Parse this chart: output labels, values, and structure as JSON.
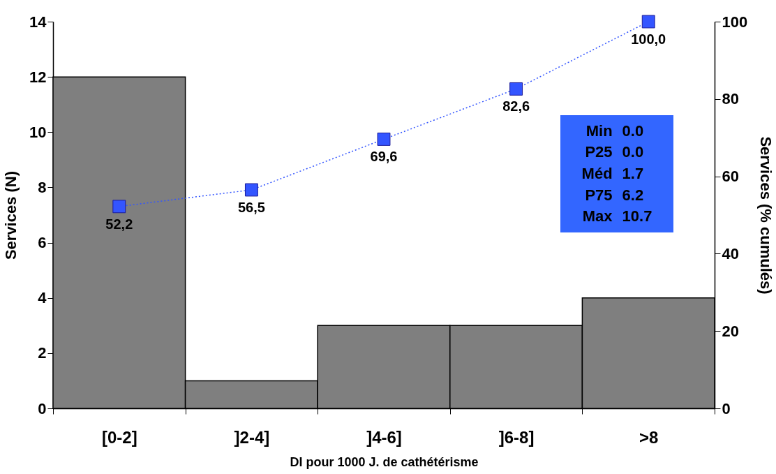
{
  "chart_data": {
    "type": "bar",
    "xlabel": "DI pour 1000 J. de cathétérisme",
    "ylabel": "Services (N)",
    "y2label": "Services (% cumulés)",
    "categories": [
      "[0-2]",
      "]2-4]",
      "]4-6]",
      "]6-8]",
      ">8"
    ],
    "series": [
      {
        "color": "#7f7f7f",
        "values": [
          12,
          1,
          3,
          3,
          4
        ]
      },
      {
        "type": "line",
        "axis": "y2",
        "color": "#3355ff",
        "values": [
          52.2,
          56.5,
          69.6,
          82.6,
          100.0
        ],
        "value_labels": [
          "52,2",
          "56,5",
          "69,6",
          "82,6",
          "100,0"
        ]
      }
    ],
    "ylim": [
      0,
      14
    ],
    "yticks": [
      0,
      2,
      4,
      6,
      8,
      10,
      12,
      14
    ],
    "y2lim": [
      0,
      100
    ],
    "y2ticks": [
      0,
      20,
      40,
      60,
      80,
      100
    ],
    "marker": "square",
    "line_style": "dotted",
    "annotations": [
      "Min 0.0",
      "P25 0.0",
      "Méd 1.7",
      "P75 6.2",
      "Max 10.7"
    ]
  }
}
